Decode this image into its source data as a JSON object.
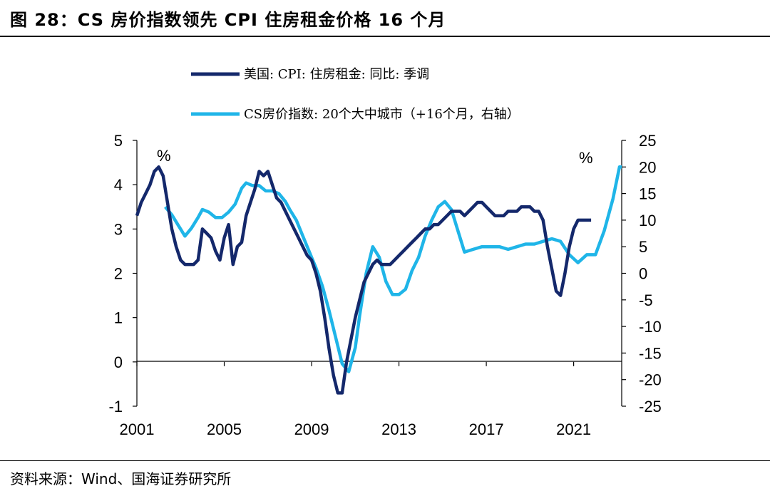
{
  "figure": {
    "title": "图 28：CS 房价指数领先 CPI 住房租金价格 16 个月",
    "source": "资料来源：Wind、国海证券研究所"
  },
  "colors": {
    "series_cpi": "#14286b",
    "series_cs": "#1fb5e8"
  },
  "chart_data": {
    "type": "line",
    "title": "CS 房价指数领先 CPI 住房租金价格 16 个月",
    "x_ticks": [
      "2001",
      "2005",
      "2009",
      "2013",
      "2017",
      "2021"
    ],
    "xlim": [
      2001,
      2023.2
    ],
    "y_left": {
      "range": [
        -1,
        5
      ],
      "ticks": [
        "5",
        "4",
        "3",
        "2",
        "1",
        "0",
        "-1"
      ],
      "unit": "%"
    },
    "y_right": {
      "range": [
        -25,
        25
      ],
      "ticks": [
        "25",
        "20",
        "15",
        "10",
        "5",
        "0",
        "-5",
        "-10",
        "-15",
        "-20",
        "-25"
      ],
      "unit": "%"
    },
    "series": [
      {
        "name": "美国: CPI: 住房租金: 同比: 季调",
        "axis": "left",
        "x": [
          2001.0,
          2001.2,
          2001.4,
          2001.6,
          2001.8,
          2002.0,
          2002.2,
          2002.4,
          2002.6,
          2002.8,
          2003.0,
          2003.2,
          2003.4,
          2003.6,
          2003.8,
          2004.0,
          2004.2,
          2004.4,
          2004.6,
          2004.8,
          2005.0,
          2005.2,
          2005.4,
          2005.6,
          2005.8,
          2006.0,
          2006.2,
          2006.4,
          2006.6,
          2006.8,
          2007.0,
          2007.2,
          2007.4,
          2007.6,
          2007.8,
          2008.0,
          2008.2,
          2008.4,
          2008.6,
          2008.8,
          2009.0,
          2009.2,
          2009.4,
          2009.6,
          2009.8,
          2010.0,
          2010.2,
          2010.4,
          2010.6,
          2010.8,
          2011.0,
          2011.2,
          2011.4,
          2011.6,
          2011.8,
          2012.0,
          2012.2,
          2012.4,
          2012.6,
          2012.8,
          2013.0,
          2013.2,
          2013.4,
          2013.6,
          2013.8,
          2014.0,
          2014.2,
          2014.4,
          2014.6,
          2014.8,
          2015.0,
          2015.2,
          2015.4,
          2015.6,
          2015.8,
          2016.0,
          2016.2,
          2016.4,
          2016.6,
          2016.8,
          2017.0,
          2017.2,
          2017.4,
          2017.6,
          2017.8,
          2018.0,
          2018.2,
          2018.4,
          2018.6,
          2018.8,
          2019.0,
          2019.2,
          2019.4,
          2019.6,
          2019.8,
          2020.0,
          2020.2,
          2020.4,
          2020.6,
          2020.8,
          2021.0,
          2021.2,
          2021.4,
          2021.6,
          2021.8
        ],
        "values": [
          3.3,
          3.6,
          3.8,
          4.0,
          4.3,
          4.4,
          4.2,
          3.6,
          3.0,
          2.6,
          2.3,
          2.2,
          2.2,
          2.2,
          2.3,
          3.0,
          2.9,
          2.8,
          2.5,
          2.3,
          2.8,
          3.1,
          2.2,
          2.6,
          2.7,
          3.3,
          3.6,
          3.9,
          4.3,
          4.2,
          4.3,
          4.0,
          3.7,
          3.6,
          3.4,
          3.2,
          3.0,
          2.8,
          2.6,
          2.4,
          2.3,
          2.0,
          1.6,
          1.0,
          0.3,
          -0.3,
          -0.7,
          -0.7,
          0.0,
          0.5,
          1.0,
          1.4,
          1.8,
          2.0,
          2.2,
          2.3,
          2.2,
          2.2,
          2.2,
          2.3,
          2.4,
          2.5,
          2.6,
          2.7,
          2.8,
          2.9,
          3.0,
          3.0,
          3.1,
          3.1,
          3.2,
          3.3,
          3.4,
          3.4,
          3.4,
          3.3,
          3.4,
          3.5,
          3.6,
          3.6,
          3.5,
          3.4,
          3.3,
          3.3,
          3.3,
          3.4,
          3.4,
          3.4,
          3.5,
          3.5,
          3.5,
          3.4,
          3.4,
          3.2,
          2.6,
          2.1,
          1.6,
          1.5,
          2.0,
          2.6,
          3.0,
          3.2,
          3.2,
          3.2,
          3.2
        ]
      },
      {
        "name": "CS房价指数: 20个大中城市（+16个月，右轴）",
        "axis": "right",
        "x": [
          2002.3,
          2002.6,
          2002.9,
          2003.2,
          2003.5,
          2003.8,
          2004.0,
          2004.3,
          2004.6,
          2004.9,
          2005.2,
          2005.5,
          2005.8,
          2006.0,
          2006.3,
          2006.6,
          2006.9,
          2007.2,
          2007.5,
          2007.8,
          2008.0,
          2008.3,
          2008.6,
          2008.9,
          2009.2,
          2009.5,
          2009.8,
          2010.1,
          2010.4,
          2010.7,
          2011.0,
          2011.2,
          2011.5,
          2011.8,
          2012.1,
          2012.4,
          2012.7,
          2013.0,
          2013.3,
          2013.6,
          2013.9,
          2014.2,
          2014.5,
          2014.8,
          2015.1,
          2015.4,
          2015.7,
          2016.0,
          2016.4,
          2016.8,
          2017.2,
          2017.6,
          2018.0,
          2018.4,
          2018.8,
          2019.2,
          2019.6,
          2020.0,
          2020.4,
          2020.8,
          2021.2,
          2021.6,
          2022.0,
          2022.4,
          2022.8,
          2023.1,
          2023.2
        ],
        "values": [
          12.5,
          11.0,
          9.0,
          7.0,
          8.5,
          10.5,
          12.0,
          11.5,
          10.5,
          10.5,
          11.5,
          13.0,
          16.0,
          17.0,
          16.5,
          16.5,
          15.5,
          15.5,
          15.0,
          13.5,
          12.0,
          10.0,
          7.0,
          4.0,
          1.0,
          -2.5,
          -7.0,
          -12.0,
          -17.0,
          -18.5,
          -14.0,
          -8.0,
          0.0,
          5.0,
          3.0,
          -1.5,
          -4.0,
          -4.0,
          -3.0,
          0.5,
          3.0,
          7.0,
          10.0,
          12.5,
          13.5,
          12.0,
          8.0,
          4.0,
          4.5,
          5.0,
          5.0,
          5.0,
          4.5,
          5.0,
          5.5,
          5.5,
          6.0,
          6.5,
          6.0,
          3.5,
          2.0,
          3.5,
          3.5,
          8.0,
          14.0,
          20.0,
          20.0
        ]
      }
    ]
  }
}
